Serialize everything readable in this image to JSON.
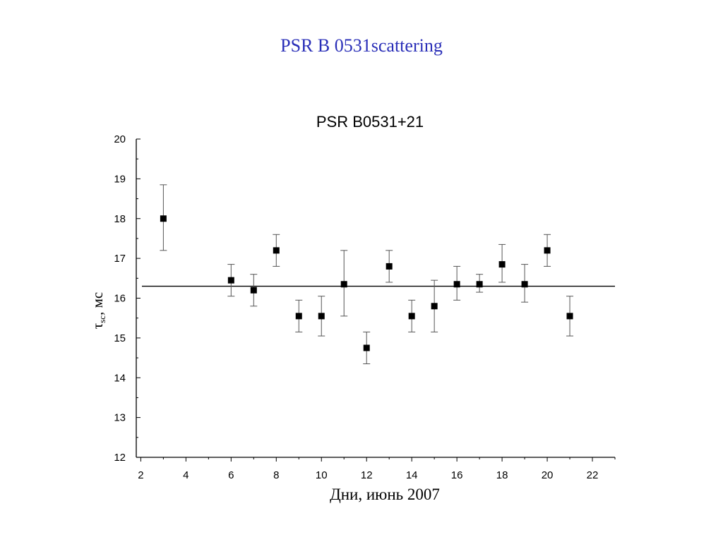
{
  "slide": {
    "title": "PSR B 0531scattering"
  },
  "chart_data": {
    "type": "scatter",
    "title": "PSR B0531+21",
    "xlabel": "Дни, июнь 2007",
    "ylabel": {
      "symbol": "τ",
      "subscript": "sc",
      "unit": ", мс"
    },
    "xlim": [
      1.8,
      23.0
    ],
    "ylim": [
      12,
      20
    ],
    "xticks": [
      2,
      4,
      6,
      8,
      10,
      12,
      14,
      16,
      18,
      20,
      22
    ],
    "yticks": [
      12,
      13,
      14,
      15,
      16,
      17,
      18,
      19,
      20
    ],
    "marker": "square",
    "grid": false,
    "mean_line": 16.3,
    "series": [
      {
        "points": [
          {
            "x": 3,
            "y": 18.0,
            "err_low": 17.2,
            "err_high": 18.85
          },
          {
            "x": 6,
            "y": 16.45,
            "err_low": 16.05,
            "err_high": 16.85
          },
          {
            "x": 7,
            "y": 16.2,
            "err_low": 15.8,
            "err_high": 16.6
          },
          {
            "x": 8,
            "y": 17.2,
            "err_low": 16.8,
            "err_high": 17.6
          },
          {
            "x": 9,
            "y": 15.55,
            "err_low": 15.15,
            "err_high": 15.95
          },
          {
            "x": 10,
            "y": 15.55,
            "err_low": 15.05,
            "err_high": 16.05
          },
          {
            "x": 11,
            "y": 16.35,
            "err_low": 15.55,
            "err_high": 17.2
          },
          {
            "x": 12,
            "y": 14.75,
            "err_low": 14.35,
            "err_high": 15.15
          },
          {
            "x": 13,
            "y": 16.8,
            "err_low": 16.4,
            "err_high": 17.2
          },
          {
            "x": 14,
            "y": 15.55,
            "err_low": 15.15,
            "err_high": 15.95
          },
          {
            "x": 15,
            "y": 15.8,
            "err_low": 15.15,
            "err_high": 16.45
          },
          {
            "x": 16,
            "y": 16.35,
            "err_low": 15.95,
            "err_high": 16.8
          },
          {
            "x": 17,
            "y": 16.35,
            "err_low": 16.15,
            "err_high": 16.6
          },
          {
            "x": 18,
            "y": 16.85,
            "err_low": 16.4,
            "err_high": 17.35
          },
          {
            "x": 19,
            "y": 16.35,
            "err_low": 15.9,
            "err_high": 16.85
          },
          {
            "x": 20,
            "y": 17.2,
            "err_low": 16.8,
            "err_high": 17.6
          },
          {
            "x": 21,
            "y": 15.55,
            "err_low": 15.05,
            "err_high": 16.05
          }
        ]
      }
    ],
    "colors": {
      "marker": "#000000",
      "errorbar": "#555555",
      "axis": "#000000",
      "mean_line": "#000000"
    }
  }
}
